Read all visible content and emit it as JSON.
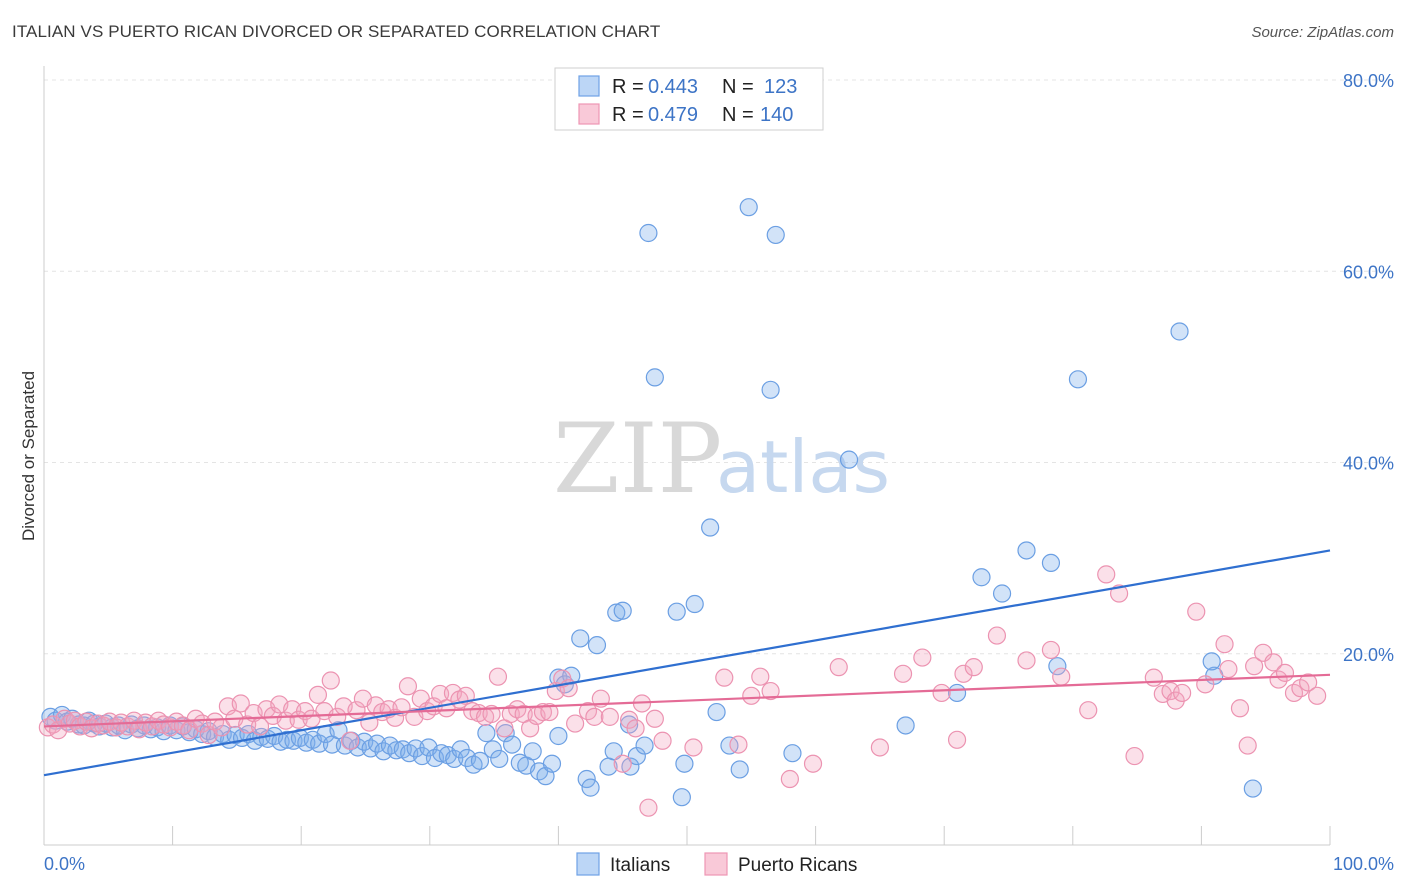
{
  "title": "ITALIAN VS PUERTO RICAN DIVORCED OR SEPARATED CORRELATION CHART",
  "source": "Source: ZipAtlas.com",
  "watermark": {
    "part1": "ZIP",
    "part2": "atlas"
  },
  "legend_top": {
    "rows": [
      {
        "r_label": "R = ",
        "r_value": "0.443",
        "n_label": "N = ",
        "n_value": "123",
        "color": "#7fb0ec"
      },
      {
        "r_label": "R = ",
        "r_value": "0.479",
        "n_label": "N = ",
        "n_value": "140",
        "color": "#f3a6c0"
      }
    ]
  },
  "legend_bottom": [
    {
      "label": "Italians",
      "color": "#7fb0ec"
    },
    {
      "label": "Puerto Ricans",
      "color": "#f3a6c0"
    }
  ],
  "chart_data": {
    "type": "scatter",
    "title": "ITALIAN VS PUERTO RICAN DIVORCED OR SEPARATED CORRELATION CHART",
    "xlabel": "",
    "ylabel": "Divorced or Separated",
    "xlim": [
      0,
      100
    ],
    "ylim": [
      0,
      80
    ],
    "x_tick_labels": [
      "0.0%",
      "100.0%"
    ],
    "y_tick_labels": [
      "20.0%",
      "40.0%",
      "60.0%",
      "80.0%"
    ],
    "y_ticks": [
      20,
      40,
      60,
      80
    ],
    "grid": true,
    "legend_position": "top-center",
    "colors": {
      "italians": "#4a86d8",
      "puerto_ricans": "#e9709a",
      "axis_label": "#3d74c6"
    },
    "series": [
      {
        "name": "Italians",
        "r": 0.443,
        "n": 123,
        "trend": [
          [
            0,
            7.3
          ],
          [
            100,
            30.8
          ]
        ],
        "points": [
          [
            0.5,
            13.4
          ],
          [
            0.9,
            13.0
          ],
          [
            1.4,
            13.6
          ],
          [
            1.8,
            12.9
          ],
          [
            2.2,
            13.2
          ],
          [
            2.7,
            12.6
          ],
          [
            3.1,
            12.5
          ],
          [
            3.5,
            13.0
          ],
          [
            3.9,
            12.7
          ],
          [
            4.3,
            12.4
          ],
          [
            4.8,
            12.7
          ],
          [
            5.3,
            12.3
          ],
          [
            5.8,
            12.5
          ],
          [
            6.3,
            12.0
          ],
          [
            6.8,
            12.6
          ],
          [
            7.3,
            12.2
          ],
          [
            7.8,
            12.5
          ],
          [
            8.3,
            12.1
          ],
          [
            8.8,
            12.3
          ],
          [
            9.3,
            11.9
          ],
          [
            9.8,
            12.5
          ],
          [
            10.3,
            12.0
          ],
          [
            10.8,
            12.4
          ],
          [
            11.3,
            11.8
          ],
          [
            11.8,
            12.1
          ],
          [
            12.3,
            11.6
          ],
          [
            12.8,
            11.9
          ],
          [
            13.3,
            11.3
          ],
          [
            13.9,
            11.6
          ],
          [
            14.4,
            11.0
          ],
          [
            14.9,
            11.5
          ],
          [
            15.4,
            11.2
          ],
          [
            15.9,
            11.6
          ],
          [
            16.4,
            10.9
          ],
          [
            16.9,
            11.3
          ],
          [
            17.4,
            11.1
          ],
          [
            17.9,
            11.4
          ],
          [
            18.4,
            10.8
          ],
          [
            18.9,
            11.0
          ],
          [
            19.4,
            10.9
          ],
          [
            19.9,
            11.2
          ],
          [
            20.4,
            10.7
          ],
          [
            20.9,
            11.0
          ],
          [
            21.4,
            10.6
          ],
          [
            21.9,
            11.6
          ],
          [
            22.4,
            10.5
          ],
          [
            22.9,
            12.0
          ],
          [
            23.4,
            10.4
          ],
          [
            23.9,
            10.9
          ],
          [
            24.4,
            10.2
          ],
          [
            24.9,
            10.8
          ],
          [
            25.4,
            10.1
          ],
          [
            25.9,
            10.6
          ],
          [
            26.4,
            9.8
          ],
          [
            26.9,
            10.4
          ],
          [
            27.4,
            9.9
          ],
          [
            27.9,
            10.0
          ],
          [
            28.4,
            9.6
          ],
          [
            28.9,
            10.1
          ],
          [
            29.4,
            9.3
          ],
          [
            29.9,
            10.2
          ],
          [
            30.4,
            9.1
          ],
          [
            30.9,
            9.6
          ],
          [
            31.4,
            9.4
          ],
          [
            31.9,
            9.0
          ],
          [
            32.4,
            10.0
          ],
          [
            32.9,
            9.1
          ],
          [
            33.4,
            8.4
          ],
          [
            33.9,
            8.8
          ],
          [
            34.4,
            11.7
          ],
          [
            34.9,
            10.0
          ],
          [
            35.4,
            9.0
          ],
          [
            35.9,
            11.7
          ],
          [
            36.4,
            10.5
          ],
          [
            37.0,
            8.6
          ],
          [
            37.5,
            8.3
          ],
          [
            38.0,
            9.8
          ],
          [
            38.5,
            7.7
          ],
          [
            39.0,
            7.2
          ],
          [
            39.5,
            8.5
          ],
          [
            40.0,
            17.5
          ],
          [
            40.5,
            16.8
          ],
          [
            41.0,
            17.7
          ],
          [
            40.0,
            11.4
          ],
          [
            41.7,
            21.6
          ],
          [
            42.2,
            6.9
          ],
          [
            42.5,
            6.0
          ],
          [
            43.0,
            20.9
          ],
          [
            43.9,
            8.2
          ],
          [
            44.3,
            9.8
          ],
          [
            44.5,
            24.3
          ],
          [
            45.0,
            24.5
          ],
          [
            45.5,
            12.6
          ],
          [
            45.6,
            8.2
          ],
          [
            46.1,
            9.3
          ],
          [
            46.7,
            10.4
          ],
          [
            47.5,
            48.9
          ],
          [
            47.0,
            64.0
          ],
          [
            49.2,
            24.4
          ],
          [
            49.6,
            5.0
          ],
          [
            49.8,
            8.5
          ],
          [
            50.6,
            25.2
          ],
          [
            51.8,
            33.2
          ],
          [
            52.3,
            13.9
          ],
          [
            53.3,
            10.4
          ],
          [
            54.1,
            7.9
          ],
          [
            54.8,
            66.7
          ],
          [
            56.5,
            47.6
          ],
          [
            56.9,
            63.8
          ],
          [
            58.2,
            9.6
          ],
          [
            62.6,
            40.3
          ],
          [
            67.0,
            12.5
          ],
          [
            71.0,
            15.9
          ],
          [
            72.9,
            28.0
          ],
          [
            74.5,
            26.3
          ],
          [
            76.4,
            30.8
          ],
          [
            78.3,
            29.5
          ],
          [
            78.8,
            18.7
          ],
          [
            80.4,
            48.7
          ],
          [
            88.3,
            53.7
          ],
          [
            91.0,
            17.7
          ],
          [
            90.8,
            19.2
          ],
          [
            94.0,
            5.9
          ]
        ]
      },
      {
        "name": "Puerto Ricans",
        "r": 0.479,
        "n": 140,
        "trend": [
          [
            0,
            12.4
          ],
          [
            100,
            17.8
          ]
        ],
        "points": [
          [
            0.3,
            12.3
          ],
          [
            0.7,
            12.6
          ],
          [
            1.1,
            12.0
          ],
          [
            1.6,
            13.2
          ],
          [
            2.0,
            12.7
          ],
          [
            2.4,
            13.0
          ],
          [
            2.8,
            12.4
          ],
          [
            3.3,
            12.9
          ],
          [
            3.7,
            12.2
          ],
          [
            4.2,
            12.7
          ],
          [
            4.6,
            12.5
          ],
          [
            5.1,
            12.9
          ],
          [
            5.6,
            12.3
          ],
          [
            6.0,
            12.8
          ],
          [
            6.5,
            12.4
          ],
          [
            7.0,
            13.0
          ],
          [
            7.4,
            12.1
          ],
          [
            7.9,
            12.8
          ],
          [
            8.4,
            12.4
          ],
          [
            8.9,
            13.0
          ],
          [
            9.3,
            12.6
          ],
          [
            9.8,
            12.3
          ],
          [
            10.3,
            12.9
          ],
          [
            10.8,
            12.5
          ],
          [
            11.3,
            12.0
          ],
          [
            11.8,
            13.2
          ],
          [
            12.3,
            12.7
          ],
          [
            12.8,
            11.5
          ],
          [
            13.3,
            12.9
          ],
          [
            13.8,
            12.3
          ],
          [
            14.3,
            14.5
          ],
          [
            14.8,
            13.2
          ],
          [
            15.3,
            14.8
          ],
          [
            15.8,
            12.6
          ],
          [
            16.3,
            13.8
          ],
          [
            16.8,
            12.4
          ],
          [
            17.3,
            14.2
          ],
          [
            17.8,
            13.5
          ],
          [
            18.3,
            14.7
          ],
          [
            18.8,
            13.0
          ],
          [
            19.3,
            14.2
          ],
          [
            19.8,
            13.1
          ],
          [
            20.3,
            14.0
          ],
          [
            20.8,
            13.2
          ],
          [
            21.3,
            15.7
          ],
          [
            21.8,
            14.0
          ],
          [
            22.3,
            17.2
          ],
          [
            22.8,
            13.4
          ],
          [
            23.3,
            14.5
          ],
          [
            23.8,
            10.9
          ],
          [
            24.3,
            14.1
          ],
          [
            24.8,
            15.3
          ],
          [
            25.3,
            12.8
          ],
          [
            25.8,
            14.6
          ],
          [
            26.3,
            13.9
          ],
          [
            26.8,
            14.2
          ],
          [
            27.3,
            13.3
          ],
          [
            27.8,
            14.4
          ],
          [
            28.3,
            16.6
          ],
          [
            28.8,
            13.4
          ],
          [
            29.3,
            15.3
          ],
          [
            29.8,
            14.0
          ],
          [
            30.3,
            14.5
          ],
          [
            30.8,
            15.8
          ],
          [
            31.3,
            14.3
          ],
          [
            31.8,
            15.9
          ],
          [
            32.3,
            15.2
          ],
          [
            32.8,
            15.6
          ],
          [
            33.3,
            14.0
          ],
          [
            33.8,
            13.8
          ],
          [
            34.3,
            13.4
          ],
          [
            34.8,
            13.7
          ],
          [
            35.3,
            17.6
          ],
          [
            35.8,
            12.2
          ],
          [
            36.3,
            13.7
          ],
          [
            36.8,
            14.2
          ],
          [
            37.3,
            13.7
          ],
          [
            37.8,
            12.2
          ],
          [
            38.3,
            13.5
          ],
          [
            38.8,
            13.9
          ],
          [
            39.3,
            13.9
          ],
          [
            39.8,
            16.1
          ],
          [
            40.3,
            17.4
          ],
          [
            40.8,
            16.4
          ],
          [
            41.3,
            12.7
          ],
          [
            42.3,
            14.0
          ],
          [
            42.8,
            13.4
          ],
          [
            43.3,
            15.3
          ],
          [
            44.0,
            13.4
          ],
          [
            45.0,
            8.5
          ],
          [
            45.5,
            13.1
          ],
          [
            46.0,
            12.2
          ],
          [
            46.5,
            14.8
          ],
          [
            47.0,
            3.9
          ],
          [
            47.5,
            13.2
          ],
          [
            48.1,
            10.9
          ],
          [
            50.5,
            10.2
          ],
          [
            52.9,
            17.5
          ],
          [
            54.0,
            10.5
          ],
          [
            55.0,
            15.6
          ],
          [
            55.7,
            17.6
          ],
          [
            56.5,
            16.1
          ],
          [
            58.0,
            6.9
          ],
          [
            59.8,
            8.5
          ],
          [
            61.8,
            18.6
          ],
          [
            65.0,
            10.2
          ],
          [
            66.8,
            17.9
          ],
          [
            68.3,
            19.6
          ],
          [
            69.8,
            15.9
          ],
          [
            71.0,
            11.0
          ],
          [
            71.5,
            17.9
          ],
          [
            72.3,
            18.6
          ],
          [
            74.1,
            21.9
          ],
          [
            76.4,
            19.3
          ],
          [
            78.3,
            20.4
          ],
          [
            79.1,
            17.6
          ],
          [
            81.2,
            14.1
          ],
          [
            82.6,
            28.3
          ],
          [
            83.6,
            26.3
          ],
          [
            84.8,
            9.3
          ],
          [
            86.3,
            17.5
          ],
          [
            87.0,
            15.8
          ],
          [
            87.6,
            16.1
          ],
          [
            88.0,
            15.1
          ],
          [
            88.5,
            15.9
          ],
          [
            89.6,
            24.4
          ],
          [
            90.3,
            16.8
          ],
          [
            91.8,
            21.0
          ],
          [
            92.1,
            18.4
          ],
          [
            93.0,
            14.3
          ],
          [
            93.6,
            10.4
          ],
          [
            94.1,
            18.7
          ],
          [
            94.8,
            20.1
          ],
          [
            95.6,
            19.1
          ],
          [
            96.0,
            17.3
          ],
          [
            96.5,
            18.0
          ],
          [
            97.2,
            15.9
          ],
          [
            97.7,
            16.4
          ],
          [
            98.3,
            17.0
          ],
          [
            99.0,
            15.6
          ]
        ]
      }
    ]
  }
}
